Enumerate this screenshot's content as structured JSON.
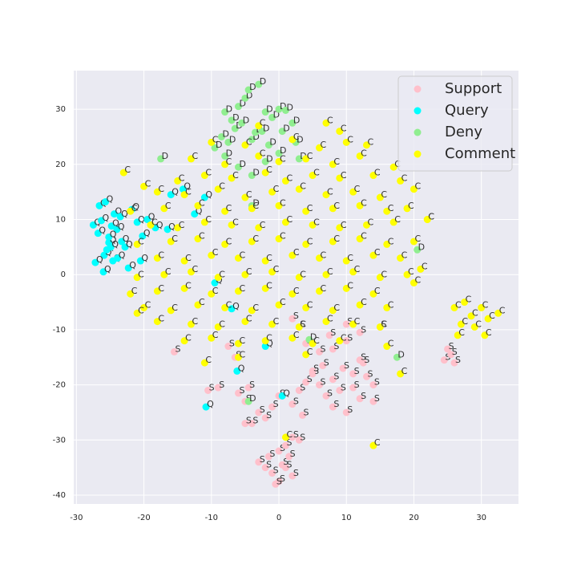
{
  "chart_data": {
    "type": "scatter",
    "xlim": [
      -30.4,
      35.5
    ],
    "ylim": [
      -41.6,
      37
    ],
    "xticks": [
      -30,
      -20,
      -10,
      0,
      10,
      20,
      30
    ],
    "yticks": [
      -40,
      -30,
      -20,
      -10,
      0,
      10,
      20,
      30
    ],
    "grid": true,
    "legend": "upper right",
    "series": [
      {
        "name": "Support",
        "color": "#ffc0cb",
        "marker_label": "S",
        "x": [
          -2,
          -1,
          0,
          1,
          2,
          -3,
          -1.5,
          0.5,
          1.5,
          -0.5,
          0,
          1,
          2,
          3,
          -4,
          -3,
          -5,
          -6,
          -4.5,
          -2,
          -1,
          0,
          2,
          3,
          4,
          5,
          6,
          7,
          8,
          9,
          10,
          11,
          12,
          13,
          14,
          3.5,
          5,
          6.5,
          8,
          9.5,
          11,
          12.5,
          14,
          4,
          6,
          8,
          10,
          12,
          -9,
          -10.5,
          -6.5,
          -7.5,
          24.5,
          25.5,
          26,
          25,
          2,
          3,
          7.5,
          10,
          12,
          15,
          -15.5,
          -5
        ],
        "y": [
          -35,
          -36,
          -37.5,
          -35,
          -36.5,
          -34,
          -33,
          -34.5,
          -33,
          -38,
          -32,
          -31,
          -29.5,
          -30,
          -27,
          -25,
          -23,
          -21.5,
          -20.5,
          -26,
          -24,
          -22,
          -23.5,
          -21,
          -19.5,
          -18,
          -20,
          -22,
          -24,
          -21,
          -25,
          -20.5,
          -22.5,
          -18.5,
          -23,
          -25.5,
          -17.5,
          -16.5,
          -19,
          -17,
          -18,
          -16,
          -20,
          -12.5,
          -14,
          -13.5,
          -12,
          -15.5,
          -20.5,
          -21,
          -15,
          -13,
          -15.5,
          -14.5,
          -16,
          -13.5,
          -8,
          -9.5,
          -11,
          -9,
          -10.5,
          -9.5,
          -14,
          -27
        ]
      },
      {
        "name": "Query",
        "color": "#00ffff",
        "marker_label": "Q",
        "x": [
          -27.5,
          -26.8,
          -25.9,
          -25.2,
          -24.6,
          -24,
          -23.3,
          -27.2,
          -26.3,
          -25.5,
          -24.8,
          -23.9,
          -22.8,
          -26.6,
          -25.7,
          -24.4,
          -23.5,
          -21.8,
          -21,
          -20.2,
          -19.5,
          -18.3,
          -16,
          -14.2,
          -12.5,
          -11,
          -9.5,
          -7,
          -6.2,
          -10.8,
          -2,
          0.5,
          -20.5,
          -22.3,
          -24.9,
          -26,
          -25.2,
          -16.5
        ],
        "y": [
          9,
          7.5,
          3.5,
          5.8,
          2.5,
          8.2,
          6,
          2.2,
          9.8,
          4.5,
          8.8,
          3,
          5,
          12.5,
          13.2,
          11,
          10.5,
          11.8,
          9.5,
          7,
          10,
          8.5,
          14.5,
          15.5,
          11,
          14,
          -1.5,
          -6.2,
          -17.5,
          -24,
          -13,
          -22,
          2.5,
          1.2,
          5,
          0.5,
          6.8,
          8.2
        ]
      },
      {
        "name": "Deny",
        "color": "#90ee90",
        "marker_label": "D",
        "x": [
          -8,
          -7,
          -6,
          -5,
          -4.5,
          -3,
          -2,
          -1,
          0,
          1,
          -8.5,
          -7.5,
          -6.5,
          -5.5,
          -4,
          -3.5,
          -2.5,
          -1.5,
          0.5,
          2,
          -9.5,
          -8,
          -6,
          -4,
          -2,
          0,
          2.5,
          3,
          -17.5,
          20.5,
          4.5,
          -4,
          -4.5,
          17.5
        ],
        "y": [
          29.5,
          28,
          30.5,
          32,
          33.5,
          34.5,
          29.5,
          28.5,
          30,
          29.8,
          25,
          24,
          26.5,
          27.5,
          24.5,
          25.8,
          26,
          23.5,
          26,
          27.5,
          23,
          21.5,
          19.5,
          18,
          20.5,
          22,
          24,
          21,
          21,
          4.5,
          -11.8,
          12.5,
          -23,
          -15
        ]
      },
      {
        "name": "Comment",
        "color": "#ffff00",
        "marker_label": "C",
        "x": [
          -3,
          7,
          9,
          -10,
          -5,
          2,
          6,
          10,
          13,
          -23,
          -13,
          -8,
          -3,
          0,
          4,
          8,
          12,
          17,
          -20,
          -15,
          -11,
          -7,
          -2,
          1,
          5,
          9,
          14,
          18,
          -18,
          -14,
          -9,
          -5,
          -1,
          3,
          7,
          11,
          15,
          20,
          -22,
          -17,
          -12,
          -8,
          -4,
          0,
          4,
          8,
          12,
          16,
          19,
          22,
          -19,
          -15,
          -11,
          -7,
          -3,
          1,
          5,
          9,
          13,
          17,
          -21,
          -16,
          -12,
          -8,
          -4,
          0,
          4,
          8,
          12,
          16,
          20,
          -18,
          -14,
          -10,
          -6,
          -2,
          2,
          6,
          10,
          14,
          18,
          21,
          -21,
          -17,
          -13,
          -9,
          -5,
          -1,
          3,
          7,
          11,
          15,
          19,
          -22,
          -18,
          -14,
          -10,
          -6,
          -2,
          2,
          6,
          10,
          14,
          20,
          -20,
          -16,
          -12,
          -8,
          -4,
          0,
          4,
          8,
          12,
          16,
          -18,
          -13,
          -9,
          -5,
          -1,
          3,
          7,
          11,
          15,
          -14,
          -10,
          -6,
          -2,
          2,
          5,
          9,
          16,
          -11,
          -6,
          4,
          18,
          26,
          27.5,
          28.5,
          30,
          31,
          29,
          27,
          32.5,
          30.5,
          26.5,
          14,
          1,
          -21,
          22
        ],
        "y": [
          27,
          27.5,
          26,
          24,
          23.5,
          24.5,
          23,
          24,
          23.5,
          18.5,
          21,
          20,
          21.5,
          20.5,
          21,
          20,
          21.5,
          19.5,
          16,
          17,
          18,
          17.5,
          18.5,
          17,
          18,
          17.5,
          18,
          17,
          15,
          14.5,
          15.5,
          14,
          15,
          15.5,
          14.5,
          15,
          14,
          15.5,
          11.5,
          12,
          12.5,
          11.5,
          12,
          12.5,
          11.5,
          12,
          12.5,
          11.5,
          12,
          10,
          9,
          8.5,
          9.5,
          9,
          8.5,
          9.5,
          9,
          8.5,
          9,
          9.5,
          5.5,
          6,
          6.5,
          5.5,
          6,
          6.5,
          5.5,
          6,
          6.5,
          5.5,
          6,
          3,
          2.5,
          3.5,
          3,
          2.5,
          3.5,
          3,
          2.5,
          3.5,
          3,
          1,
          -0.5,
          0,
          0.5,
          -0.5,
          0,
          0.5,
          -0.5,
          0,
          0.5,
          -0.5,
          0,
          -3.5,
          -3,
          -2.5,
          -3.5,
          -3,
          -2.5,
          -3.5,
          -3,
          -2.5,
          -3.5,
          -1.5,
          -6,
          -6.5,
          -5.5,
          -6,
          -6.5,
          -5.5,
          -6,
          -6.5,
          -5.5,
          -6,
          -8.5,
          -9,
          -9.5,
          -8.5,
          -9,
          -9.5,
          -8.5,
          -9,
          -9.5,
          -12,
          -11.5,
          -12.5,
          -12,
          -11.5,
          -12.5,
          -12,
          -13,
          -16,
          -15,
          -14.5,
          -18,
          -6,
          -5,
          -7.5,
          -6,
          -8,
          -9.5,
          -9,
          -7,
          -11,
          -11,
          -31,
          -29.5,
          -7,
          10
        ]
      }
    ]
  }
}
